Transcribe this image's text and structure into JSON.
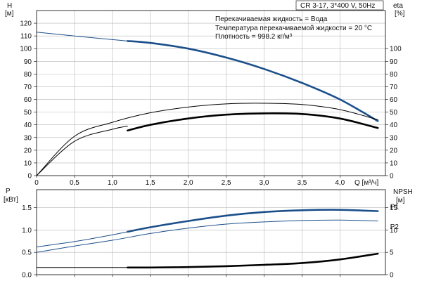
{
  "chart_data": [
    {
      "type": "line",
      "model_label": "CR 3-17, 3*400 V, 50Hz",
      "info_lines": [
        "Перекачиваемая жидкость = Вода",
        "Температура перекачиваемой жидкости = 20 °C",
        "Плотность = 998.2 кг/м³"
      ],
      "xlabel": "Q [м³/ч]",
      "xlim": [
        0,
        4.6
      ],
      "x_ticks": [
        0,
        0.5,
        1.0,
        1.5,
        2.0,
        2.5,
        3.0,
        3.5,
        4.0
      ],
      "x_tick_labels": [
        "0",
        "0,5",
        "1,0",
        "1,5",
        "2,0",
        "2,5",
        "3,0",
        "3,5",
        "4,0"
      ],
      "left_axis": {
        "label_line1": "H",
        "label_line2": "[м]",
        "ylim": [
          0,
          130
        ],
        "ticks": [
          0,
          10,
          20,
          30,
          40,
          50,
          60,
          70,
          80,
          90,
          100,
          110,
          120
        ]
      },
      "right_axis": {
        "label_line1": "eta",
        "label_line2": "[%]",
        "ylim": [
          0,
          130
        ],
        "ticks": [
          0,
          10,
          20,
          30,
          40,
          50,
          60,
          70,
          80,
          90,
          100
        ]
      },
      "grid": true,
      "series": [
        {
          "axis": "left",
          "color": "#1b4f8a",
          "style": "thin",
          "x": [
            0,
            0.5,
            1.2
          ],
          "y": [
            113,
            110,
            106
          ]
        },
        {
          "axis": "left",
          "color": "#1b4f8a",
          "style": "thick",
          "x": [
            1.2,
            1.5,
            2.0,
            2.5,
            3.0,
            3.5,
            4.0,
            4.5
          ],
          "y": [
            106,
            104.5,
            100,
            93,
            84,
            73,
            60,
            43
          ]
        },
        {
          "axis": "right",
          "color": "#000000",
          "style": "thin",
          "x": [
            0,
            0.5,
            1.0,
            1.5,
            2.0,
            2.5,
            3.0,
            3.5,
            4.0,
            4.5
          ],
          "y": [
            0,
            31,
            42,
            49.5,
            54,
            56.5,
            57,
            56,
            52,
            44
          ]
        },
        {
          "axis": "right",
          "color": "#000000",
          "style": "thin",
          "x": [
            0,
            0.5,
            1.0,
            1.2
          ],
          "y": [
            0,
            27,
            36.5,
            39
          ]
        },
        {
          "axis": "right",
          "color": "#000000",
          "style": "thick",
          "x": [
            1.2,
            1.5,
            2.0,
            2.5,
            3.0,
            3.5,
            4.0,
            4.5
          ],
          "y": [
            35.5,
            40,
            45,
            48,
            49,
            48.5,
            45,
            37.5
          ]
        }
      ]
    },
    {
      "type": "line",
      "xlim": [
        0,
        4.6
      ],
      "left_axis": {
        "label_line1": "P",
        "label_line2": "[кВт]",
        "ylim": [
          0,
          1.9
        ],
        "ticks": [
          0,
          0.5,
          1.0,
          1.5
        ],
        "tick_labels": [
          "0.0",
          "0.5",
          "1.0",
          "1.5"
        ]
      },
      "right_axis": {
        "label_line1": "NPSH",
        "label_line2": "[м]",
        "ylim": [
          0,
          19
        ],
        "ticks": [
          0,
          5,
          10,
          15
        ],
        "tick_labels": [
          "0",
          "5",
          "10",
          "15"
        ]
      },
      "grid": true,
      "series": [
        {
          "name": "P1",
          "axis": "left",
          "color": "#1b4f8a",
          "style": "thin",
          "x": [
            0,
            0.5,
            1.0,
            1.2
          ],
          "y": [
            0.62,
            0.74,
            0.89,
            0.96
          ]
        },
        {
          "name": "P1",
          "axis": "left",
          "color": "#1b4f8a",
          "style": "thick",
          "x": [
            1.2,
            1.5,
            2.0,
            2.5,
            3.0,
            3.5,
            4.0,
            4.5
          ],
          "y": [
            0.96,
            1.06,
            1.2,
            1.32,
            1.4,
            1.44,
            1.45,
            1.42
          ]
        },
        {
          "name": "P2",
          "axis": "left",
          "color": "#1b4f8a",
          "style": "thin",
          "x": [
            0,
            0.5,
            1.0,
            1.5,
            2.0,
            2.5,
            3.0,
            3.5,
            4.0,
            4.5
          ],
          "y": [
            0.5,
            0.64,
            0.77,
            0.92,
            1.04,
            1.13,
            1.18,
            1.21,
            1.22,
            1.2
          ]
        },
        {
          "axis": "right",
          "color": "#000000",
          "style": "thin",
          "x": [
            0,
            0.5,
            1.0,
            1.2
          ],
          "y": [
            1.6,
            1.6,
            1.6,
            1.6
          ]
        },
        {
          "axis": "right",
          "color": "#000000",
          "style": "thick",
          "x": [
            1.2,
            1.5,
            2.0,
            2.5,
            3.0,
            3.5,
            4.0,
            4.5
          ],
          "y": [
            1.6,
            1.6,
            1.7,
            1.9,
            2.2,
            2.6,
            3.4,
            4.7
          ]
        }
      ],
      "series_labels": [
        {
          "text": "P1",
          "x": 4.45,
          "y": 1.53
        },
        {
          "text": "P2",
          "x": 4.45,
          "y": 1.08
        }
      ]
    }
  ]
}
